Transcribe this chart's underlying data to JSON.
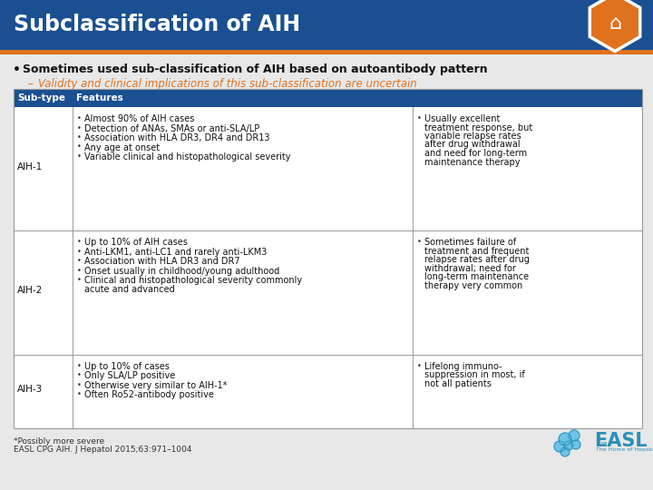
{
  "title": "Subclassification of AIH",
  "title_bg": "#1a5091",
  "title_fg": "#ffffff",
  "accent_color": "#e0721e",
  "bullet1": "Sometimes used sub-classification of AIH based on autoantibody pattern",
  "bullet2": "Validity and clinical implications of this sub-classification are uncertain",
  "bg_color": "#e8e8e8",
  "table_header_bg": "#1a5091",
  "table_header_fg": "#ffffff",
  "table_border": "#999999",
  "rows": [
    {
      "subtype": "AIH-1",
      "left_bullets": [
        "Almost 90% of AIH cases",
        "Detection of ANAs, SMAs or anti-SLA/LP",
        "Association with HLA DR3, DR4 and DR13",
        "Any age at onset",
        "Variable clinical and histopathological severity"
      ],
      "right_text": "Usually excellent\ntreatment response, but\nvariable relapse rates\nafter drug withdrawal\nand need for long-term\nmaintenance therapy"
    },
    {
      "subtype": "AIH-2",
      "left_bullets": [
        "Up to 10% of AIH cases",
        "Anti-LKM1, anti-LC1 and rarely anti-LKM3",
        "Association with HLA DR3 and DR7",
        "Onset usually in childhood/young adulthood",
        "Clinical and histopathological severity commonly\nacute and advanced"
      ],
      "right_text": "Sometimes failure of\ntreatment and frequent\nrelapse rates after drug\nwithdrawal; need for\nlong-term maintenance\ntherapy very common"
    },
    {
      "subtype": "AIH-3",
      "left_bullets": [
        "Up to 10% of cases",
        "Only SLA/LP positive",
        "Otherwise very similar to AIH-1*",
        "Often Ro52-antibody positive"
      ],
      "right_text": "Lifelong immuno-\nsuppression in most, if\nnot all patients"
    }
  ],
  "footnote1": "*Possibly more severe",
  "footnote2": "EASL CPG AIH. J Hepatol 2015;63:971–1004"
}
